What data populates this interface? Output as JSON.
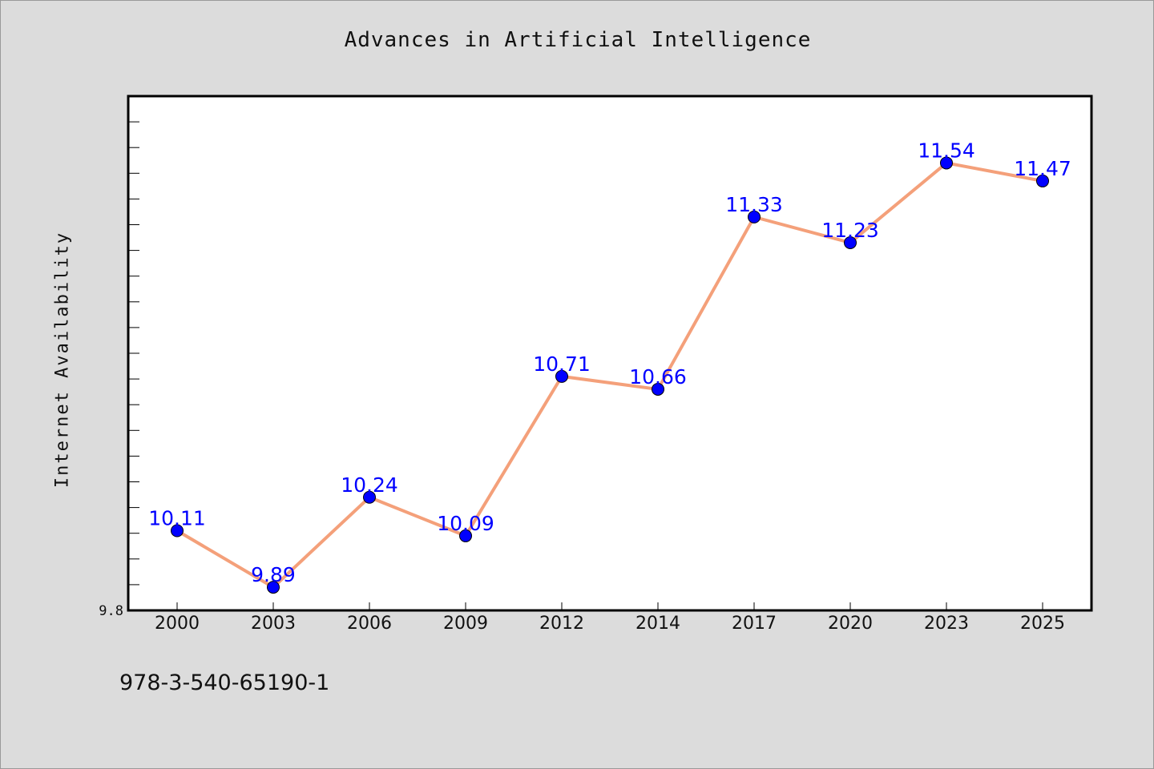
{
  "chart_data": {
    "type": "line",
    "title": "Advances in Artificial Intelligence",
    "xlabel": "",
    "ylabel": "Internet Availability",
    "categories": [
      "2000",
      "2003",
      "2006",
      "2009",
      "2012",
      "2014",
      "2017",
      "2020",
      "2023",
      "2025"
    ],
    "series": [
      {
        "values": [
          10.11,
          9.89,
          10.24,
          10.09,
          10.71,
          10.66,
          11.33,
          11.23,
          11.54,
          11.47
        ],
        "labels": [
          "10.11",
          "9.89",
          "10.24",
          "10.09",
          "10.71",
          "10.66",
          "11.33",
          "11.23",
          "11.54",
          "11.47"
        ],
        "line_color": "#f4a07a",
        "marker_color": "#0000ff"
      }
    ],
    "ylim": [
      9.8,
      11.8
    ],
    "y_tick_labels": [
      "9.8"
    ],
    "grid": false,
    "legend": "none"
  },
  "footer": {
    "code": "978-3-540-65190-1"
  },
  "colors": {
    "background": "#dcdcdc",
    "plot_background": "#ffffff",
    "line": "#f4a07a",
    "marker": "#0000ff",
    "data_label": "#0000ff"
  }
}
